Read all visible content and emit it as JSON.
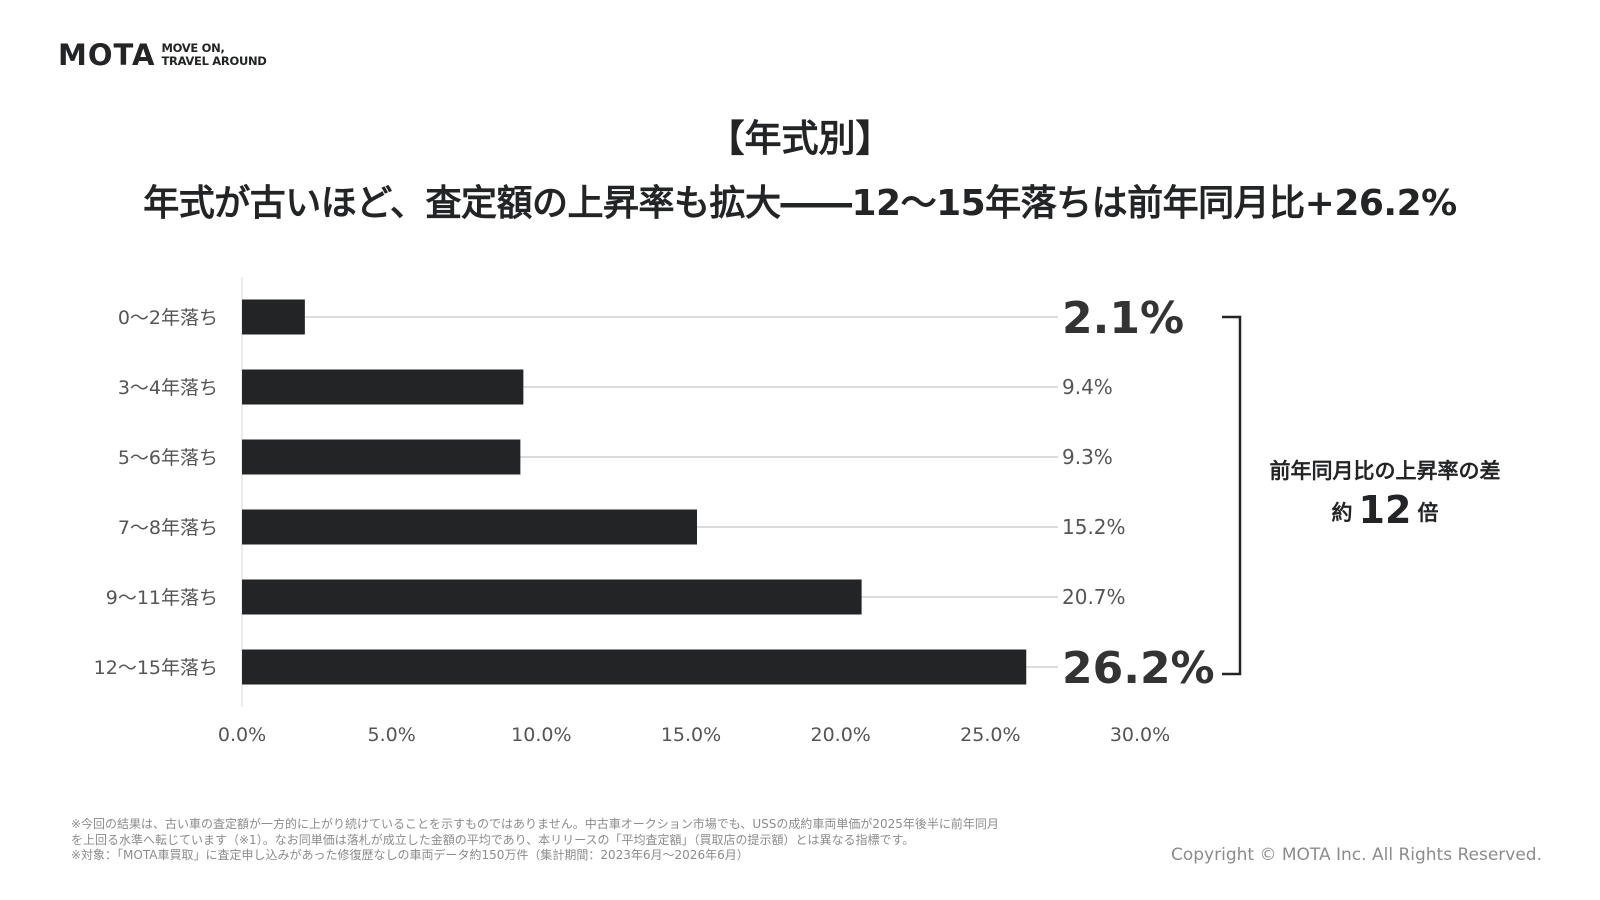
{
  "logo": {
    "mark": "MOTA",
    "tagline_line1": "MOVE ON,",
    "tagline_line2": "TRAVEL AROUND"
  },
  "title": "【年式別】",
  "subtitle": "年式が古いほど、査定額の上昇率も拡大――12〜15年落ちは前年同月比+26.2%",
  "chart_data": {
    "type": "bar",
    "orientation": "horizontal",
    "categories": [
      "0〜2年落ち",
      "3〜4年落ち",
      "5〜6年落ち",
      "7〜8年落ち",
      "9〜11年落ち",
      "12〜15年落ち"
    ],
    "values": [
      2.1,
      9.4,
      9.3,
      15.2,
      20.7,
      26.2
    ],
    "value_labels": [
      "2.1%",
      "9.4%",
      "9.3%",
      "15.2%",
      "20.7%",
      "26.2%"
    ],
    "highlighted_labels": [
      0,
      5
    ],
    "xlim": [
      0,
      30
    ],
    "x_ticks": [
      "0.0%",
      "5.0%",
      "10.0%",
      "15.0%",
      "20.0%",
      "25.0%",
      "30.0%"
    ],
    "x_tick_values": [
      0,
      5,
      10,
      15,
      20,
      25,
      30
    ],
    "xlabel": "",
    "ylabel": "",
    "grid": false,
    "bar_color": "#222426",
    "leader_line_color": "#c8c8c8"
  },
  "callout": {
    "line1": "前年同月比の上昇率の差",
    "prefix": "約",
    "number": "12",
    "suffix": "倍"
  },
  "footnotes": [
    "※今回の結果は、古い車の査定額が一方的に上がり続けていることを示すものではありません。中古車オークション市場でも、USSの成約車両単価が2025年後半に前年同月",
    "を上回る水準へ転じています（※1）。なお同単価は落札が成立した金額の平均であり、本リリースの「平均査定額」（買取店の提示額）とは異なる指標です。",
    "※対象：「MOTA車買取」に査定申し込みがあった修復歴なしの車両データ約150万件（集計期間：2023年6月〜2026年6月）"
  ],
  "copyright": "Copyright © MOTA Inc. All Rights Reserved."
}
